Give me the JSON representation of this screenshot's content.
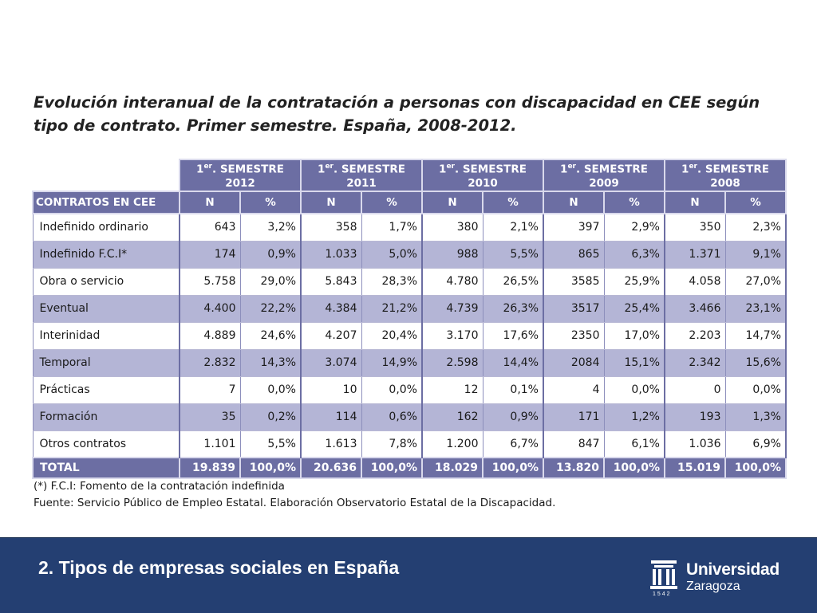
{
  "slide": {
    "title": "Evolución interanual de la contratación a personas con discapacidad en CEE según tipo de contrato. Primer semestre. España, 2008-2012.",
    "footer_title": "2. Tipos de empresas sociales en España",
    "logo": {
      "name": "Universidad",
      "city": "Zaragoza",
      "year": "1542"
    }
  },
  "table": {
    "semesters": [
      {
        "prefix": "1",
        "sup": "er",
        "suffix": ". SEMESTRE",
        "year": "2012"
      },
      {
        "prefix": "1",
        "sup": "er",
        "suffix": ". SEMESTRE",
        "year": "2011"
      },
      {
        "prefix": "1",
        "sup": "er",
        "suffix": ". SEMESTRE",
        "year": "2010"
      },
      {
        "prefix": "1",
        "sup": "er",
        "suffix": ". SEMESTRE",
        "year": "2009"
      },
      {
        "prefix": "1",
        "sup": "er",
        "suffix": ". SEMESTRE",
        "year": "2008"
      }
    ],
    "row_header": "CONTRATOS EN CEE",
    "col_n": "N",
    "col_pct": "%",
    "rows": [
      {
        "label": "Indefinido ordinario",
        "values": [
          "643",
          "3,2%",
          "358",
          "1,7%",
          "380",
          "2,1%",
          "397",
          "2,9%",
          "350",
          "2,3%"
        ]
      },
      {
        "label": "Indefinido F.C.I*",
        "values": [
          "174",
          "0,9%",
          "1.033",
          "5,0%",
          "988",
          "5,5%",
          "865",
          "6,3%",
          "1.371",
          "9,1%"
        ]
      },
      {
        "label": "Obra o servicio",
        "values": [
          "5.758",
          "29,0%",
          "5.843",
          "28,3%",
          "4.780",
          "26,5%",
          "3585",
          "25,9%",
          "4.058",
          "27,0%"
        ]
      },
      {
        "label": "Eventual",
        "values": [
          "4.400",
          "22,2%",
          "4.384",
          "21,2%",
          "4.739",
          "26,3%",
          "3517",
          "25,4%",
          "3.466",
          "23,1%"
        ]
      },
      {
        "label": "Interinidad",
        "values": [
          "4.889",
          "24,6%",
          "4.207",
          "20,4%",
          "3.170",
          "17,6%",
          "2350",
          "17,0%",
          "2.203",
          "14,7%"
        ]
      },
      {
        "label": "Temporal",
        "values": [
          "2.832",
          "14,3%",
          "3.074",
          "14,9%",
          "2.598",
          "14,4%",
          "2084",
          "15,1%",
          "2.342",
          "15,6%"
        ]
      },
      {
        "label": "Prácticas",
        "values": [
          "7",
          "0,0%",
          "10",
          "0,0%",
          "12",
          "0,1%",
          "4",
          "0,0%",
          "0",
          "0,0%"
        ]
      },
      {
        "label": "Formación",
        "values": [
          "35",
          "0,2%",
          "114",
          "0,6%",
          "162",
          "0,9%",
          "171",
          "1,2%",
          "193",
          "1,3%"
        ]
      },
      {
        "label": "Otros contratos",
        "values": [
          "1.101",
          "5,5%",
          "1.613",
          "7,8%",
          "1.200",
          "6,7%",
          "847",
          "6,1%",
          "1.036",
          "6,9%"
        ]
      }
    ],
    "total": {
      "label": "TOTAL",
      "values": [
        "19.839",
        "100,0%",
        "20.636",
        "100,0%",
        "18.029",
        "100,0%",
        "13.820",
        "100,0%",
        "15.019",
        "100,0%"
      ]
    }
  },
  "notes": {
    "fci": "(*) F.C.I: Fomento de la contratación indefinida",
    "source": "Fuente: Servicio Público de Empleo Estatal. Elaboración Observatorio Estatal de la Discapacidad."
  },
  "colors": {
    "header_bg": "#6c6ea3",
    "band_bg": "#b4b5d6",
    "footer_bg": "#243f72"
  }
}
